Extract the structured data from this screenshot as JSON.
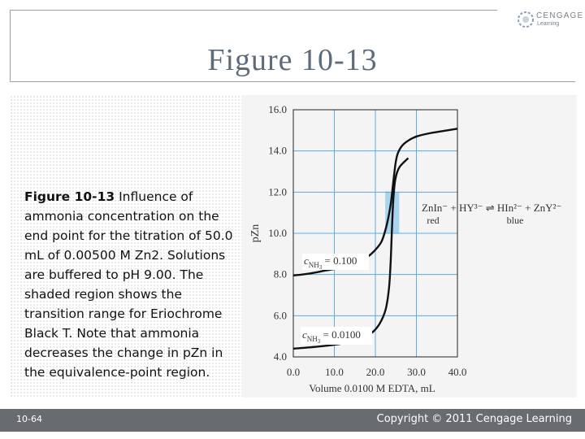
{
  "slide": {
    "title": "Figure 10-13",
    "caption_bold": "Figure 10-13",
    "caption_text": " Influence of ammonia concentration on the end point for the titration of 50.0 mL of 0.00500 M Zn2. Solutions are buffered to pH 9.00. The shaded region shows the transition range for Eriochrome Black T. Note that ammonia decreases the change in pZn in the equivalence-point region.",
    "page_number": "10-64",
    "copyright": "Copyright © 2011 Cengage Learning",
    "logo_line1": "CENGAGE",
    "logo_line2": "Learning"
  },
  "chart_data": {
    "type": "line",
    "xlabel": "Volume 0.0100 M EDTA, mL",
    "ylabel": "pZn",
    "xlim": [
      0,
      40
    ],
    "ylim": [
      4,
      16
    ],
    "xticks": [
      "0.0",
      "10.0",
      "20.0",
      "30.0",
      "40.0"
    ],
    "yticks": [
      "4.0",
      "6.0",
      "8.0",
      "10.0",
      "12.0",
      "14.0",
      "16.0"
    ],
    "grid": true,
    "shaded_region": {
      "y_from": 10.0,
      "y_to": 12.0,
      "x_from": 22.4,
      "x_to": 25.8,
      "color": "#a9d4ef"
    },
    "annotations": {
      "high_label_main": "c",
      "high_label_sub": "NH",
      "high_label_subsub": "3",
      "high_label_value": " = 0.100",
      "low_label_main": "c",
      "low_label_sub": "NH",
      "low_label_subsub": "3",
      "low_label_value": " = 0.0100",
      "equation": "ZnIn⁻ + HY³⁻ ⇌ HIn²⁻ + ZnY²⁻",
      "red_label": "red",
      "blue_label": "blue"
    },
    "series": [
      {
        "label": "c_NH3 = 0.100",
        "x": [
          0,
          4,
          8,
          12,
          15,
          18,
          20,
          21.5,
          22.5,
          23.2,
          23.8,
          24.2,
          24.6,
          25.0,
          25.5,
          26.5,
          28,
          30,
          33,
          36,
          40
        ],
        "y": [
          7.95,
          8.05,
          8.2,
          8.35,
          8.55,
          8.85,
          9.2,
          9.6,
          10.2,
          10.8,
          11.5,
          12.2,
          12.9,
          13.5,
          13.9,
          14.25,
          14.5,
          14.7,
          14.85,
          14.95,
          15.08
        ],
        "color": "#111111"
      },
      {
        "label": "c_NH3 = 0.0100",
        "x": [
          0,
          6,
          12,
          16,
          19,
          21,
          22.5,
          23.3,
          23.7,
          24.0,
          24.3,
          24.7,
          25.2,
          26,
          28
        ],
        "y": [
          4.4,
          4.5,
          4.65,
          4.85,
          5.15,
          5.6,
          6.3,
          7.3,
          8.5,
          10.0,
          11.4,
          12.4,
          12.9,
          13.25,
          13.65
        ],
        "color": "#111111"
      }
    ]
  }
}
